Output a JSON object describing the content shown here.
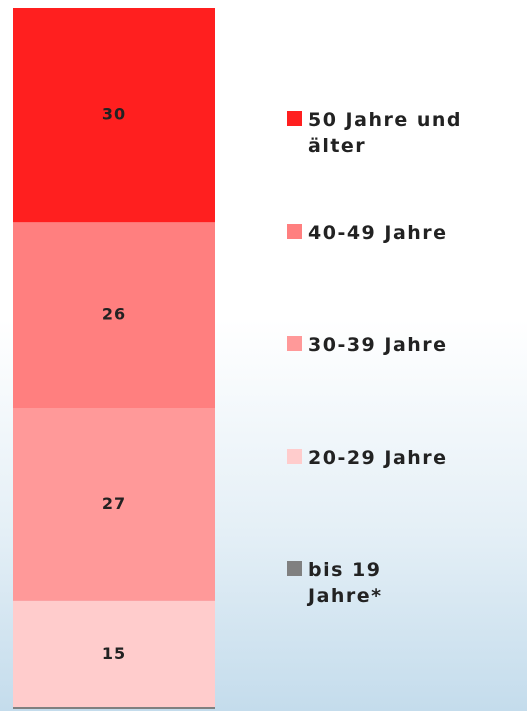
{
  "chart_data": {
    "type": "stacked-bar",
    "categories": [
      null
    ],
    "series": [
      {
        "name": "bis 19 Jahre*",
        "color": "#808080",
        "values": [
          0
        ]
      },
      {
        "name": "20-29 Jahre",
        "color": "#ffcccc",
        "values": [
          15
        ]
      },
      {
        "name": "30-39 Jahre",
        "color": "#ff9999",
        "values": [
          27
        ]
      },
      {
        "name": "40-49 Jahre",
        "color": "#ff7f7f",
        "values": [
          26
        ]
      },
      {
        "name": "50 Jahre und älter",
        "color": "#ff1f1f",
        "values": [
          30
        ]
      }
    ],
    "ylim": [
      0,
      98
    ]
  }
}
